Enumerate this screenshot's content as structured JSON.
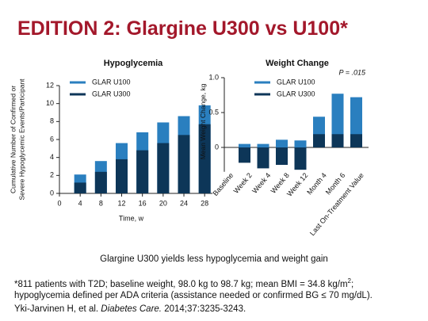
{
  "title": "EDITION 2: Glargine U300 vs U100*",
  "chart_data": [
    {
      "type": "bar",
      "title": "Hypoglycemia",
      "ylabel": [
        "Cumulative Number of Confirmed or",
        "Severe Hypoglycemic Events/Participant"
      ],
      "xlabel": "Time, w",
      "x": [
        4,
        8,
        12,
        16,
        20,
        24,
        28
      ],
      "series": [
        {
          "name": "GLAR U100",
          "color": "#2a7fbf",
          "values": [
            2.1,
            3.6,
            5.6,
            6.8,
            7.9,
            8.6,
            9.8
          ]
        },
        {
          "name": "GLAR U300",
          "color": "#0d3658",
          "values": [
            1.2,
            2.4,
            3.8,
            4.8,
            5.6,
            6.5,
            7.7
          ]
        }
      ],
      "xlim": [
        0,
        29.5
      ],
      "xticks": [
        0,
        4,
        8,
        12,
        16,
        20,
        24,
        28
      ],
      "ylim": [
        0,
        12
      ],
      "yticks": [
        0,
        2,
        4,
        6,
        8,
        10,
        12
      ]
    },
    {
      "type": "bar",
      "title": "Weight Change",
      "ylabel": "Mean Weight Change, kg",
      "annotation": "P = .015",
      "categories": [
        "Baseline",
        "Week 2",
        "Week 4",
        "Week 8",
        "Week 12",
        "Month 4",
        "Month 6",
        "Last On-Treatment Value"
      ],
      "series": [
        {
          "name": "GLAR U100",
          "color": "#2a7fbf",
          "values": [
            null,
            0.05,
            0.05,
            0.11,
            0.1,
            0.44,
            0.77,
            0.72
          ]
        },
        {
          "name": "GLAR U300",
          "color": "#0d3658",
          "values": [
            null,
            -0.22,
            -0.3,
            -0.25,
            -0.32,
            0.19,
            0.19,
            0.19
          ]
        }
      ],
      "ylim": [
        -0.35,
        1
      ],
      "yticks": [
        0,
        0.5,
        {
          "value": 1,
          "label": "1.0"
        }
      ]
    }
  ],
  "caption": "Glargine U300 yields less hypoglycemia and weight gain",
  "notes": [
    [
      "*811 patients with T2D; baseline weight, 98.0 kg to 98.7 kg; mean BMI = 34.8 kg/m",
      "2",
      ";"
    ],
    [
      "hypoglycemia defined per ADA criteria (assistance needed or confirmed BG ≤ 70 mg/dL)."
    ],
    [
      "Yki-Jarvinen H, et al. ",
      "Diabetes Care.",
      " 2014;37:3235-3243."
    ]
  ]
}
